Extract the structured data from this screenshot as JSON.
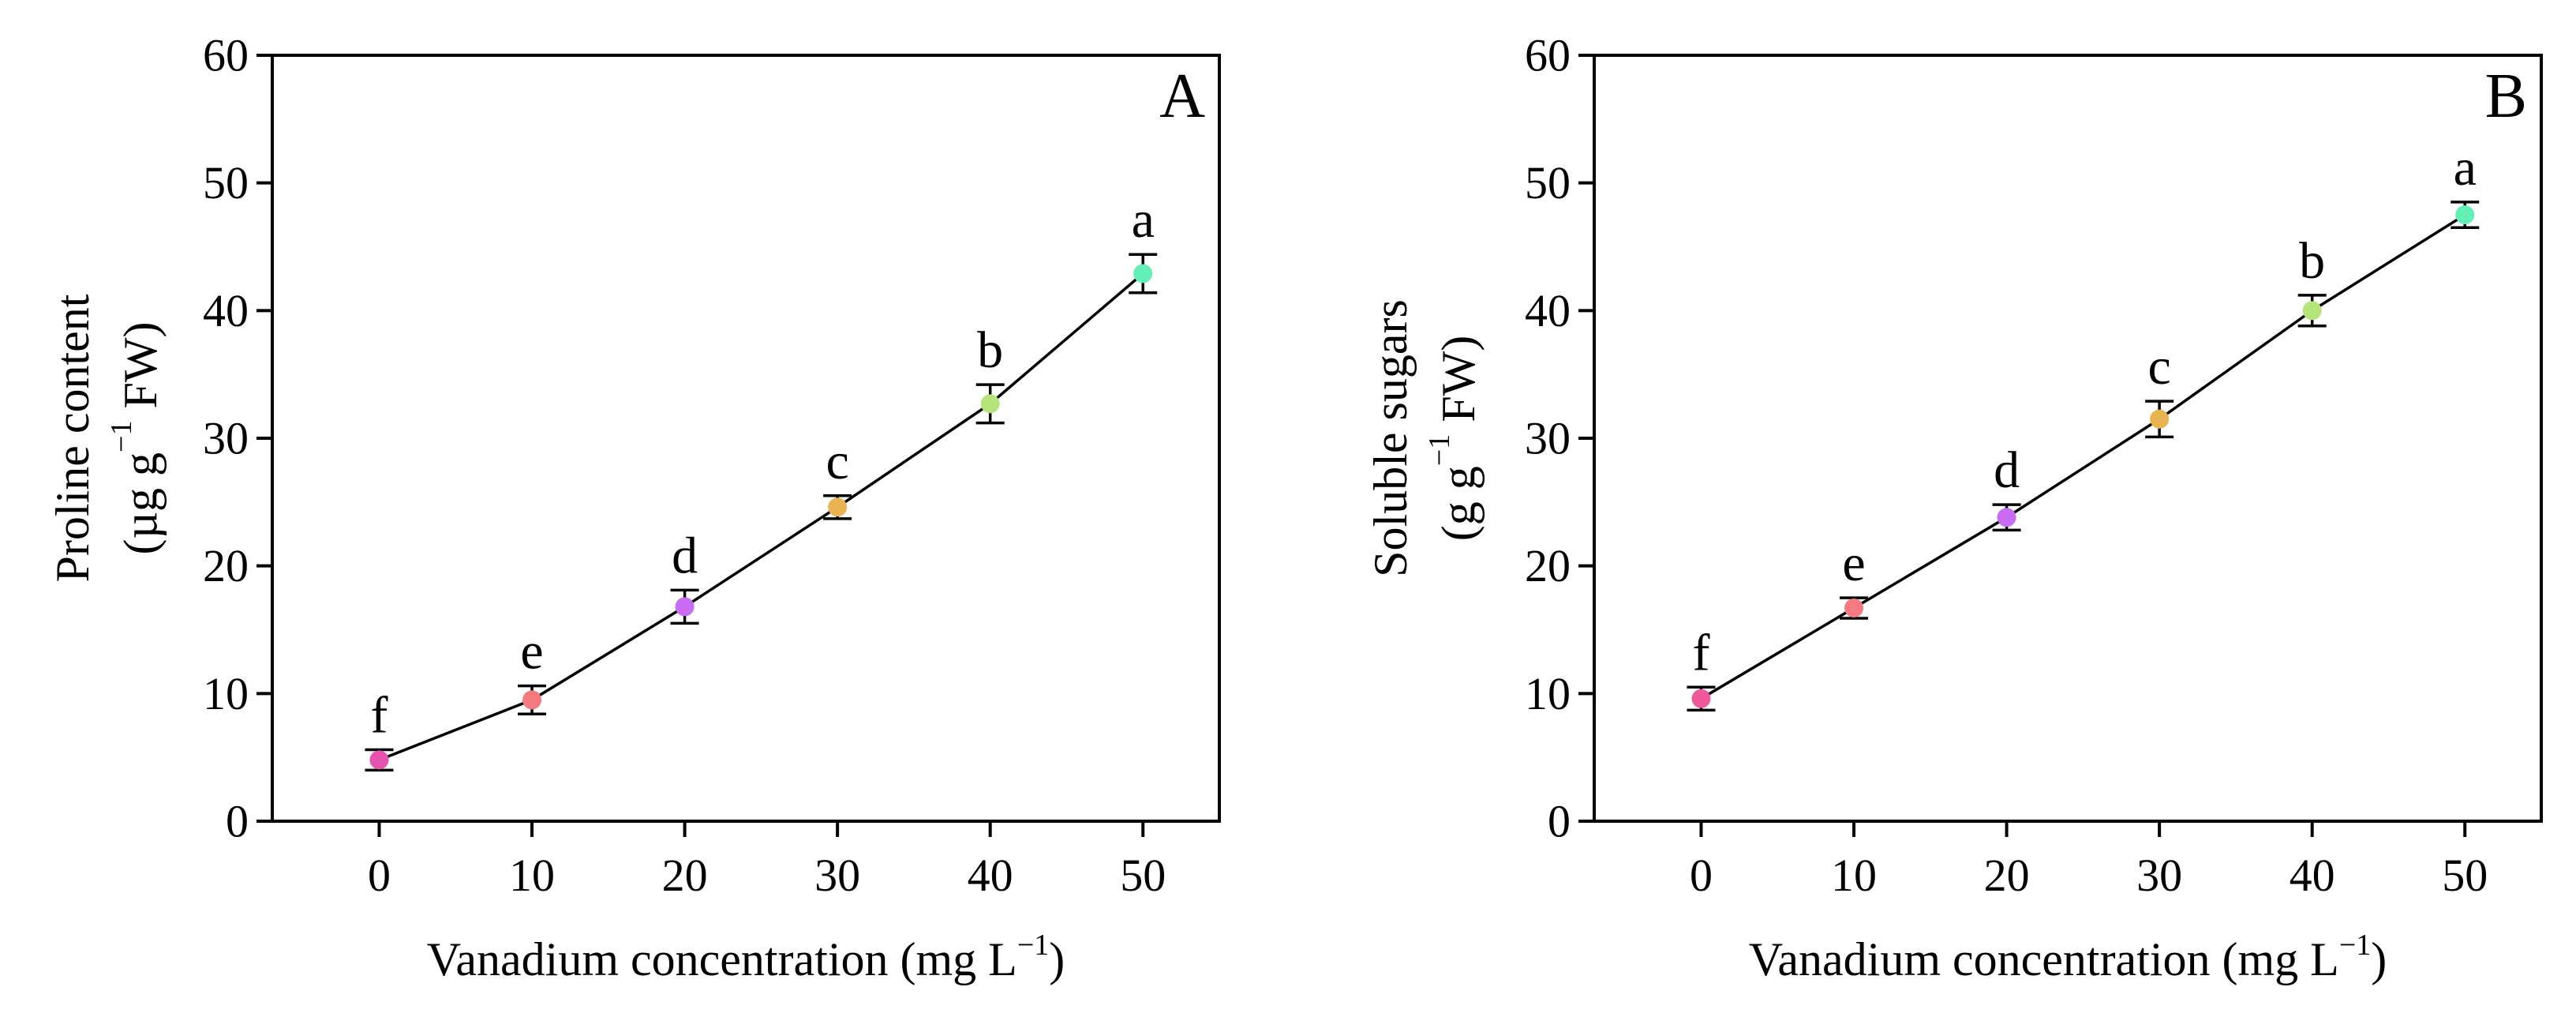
{
  "chart_data": [
    {
      "type": "line",
      "panel_label": "A",
      "x": [
        0,
        10,
        20,
        30,
        40,
        50
      ],
      "series": [
        {
          "values": [
            4.8,
            9.5,
            16.8,
            24.6,
            32.7,
            42.9
          ],
          "errors": [
            0.8,
            1.1,
            1.3,
            0.9,
            1.5,
            1.5
          ],
          "colors": [
            "#e754b0",
            "#f47a80",
            "#c86cf4",
            "#e9b352",
            "#b4e47a",
            "#62f0b6"
          ]
        }
      ],
      "significance": [
        "f",
        "e",
        "d",
        "c",
        "b",
        "a"
      ],
      "ylabel_line1": "Proline content",
      "ylabel_line2_pre": "(µg g",
      "ylabel_sup": "−1",
      "ylabel_line2_post": " FW)",
      "xlabel_pre": "Vanadium concentration (mg L",
      "xlabel_sup": "−1",
      "xlabel_post": ")",
      "xlim": [
        -7,
        55
      ],
      "ylim": [
        0,
        60
      ],
      "xticks": [
        0,
        10,
        20,
        30,
        40,
        50
      ],
      "yticks": [
        0,
        10,
        20,
        30,
        40,
        50,
        60
      ],
      "grid": false,
      "legend": "none"
    },
    {
      "type": "line",
      "panel_label": "B",
      "x": [
        0,
        10,
        20,
        30,
        40,
        50
      ],
      "series": [
        {
          "values": [
            9.6,
            16.7,
            23.8,
            31.5,
            40.0,
            47.5
          ],
          "errors": [
            0.9,
            0.8,
            1.0,
            1.4,
            1.2,
            1.0
          ],
          "colors": [
            "#f0589c",
            "#f47a80",
            "#c86cf4",
            "#e9b352",
            "#b4e47a",
            "#62f0b6"
          ]
        }
      ],
      "significance": [
        "f",
        "e",
        "d",
        "c",
        "b",
        "a"
      ],
      "ylabel_line1": "Soluble sugars",
      "ylabel_line2_pre": "(g g",
      "ylabel_sup": "−1",
      "ylabel_line2_post": " FW)",
      "xlabel_pre": "Vanadium concentration (mg L",
      "xlabel_sup": "−1",
      "xlabel_post": ")",
      "xlim": [
        -7,
        55
      ],
      "ylim": [
        0,
        60
      ],
      "xticks": [
        0,
        10,
        20,
        30,
        40,
        50
      ],
      "yticks": [
        0,
        10,
        20,
        30,
        40,
        50,
        60
      ],
      "grid": false,
      "legend": "none"
    }
  ]
}
